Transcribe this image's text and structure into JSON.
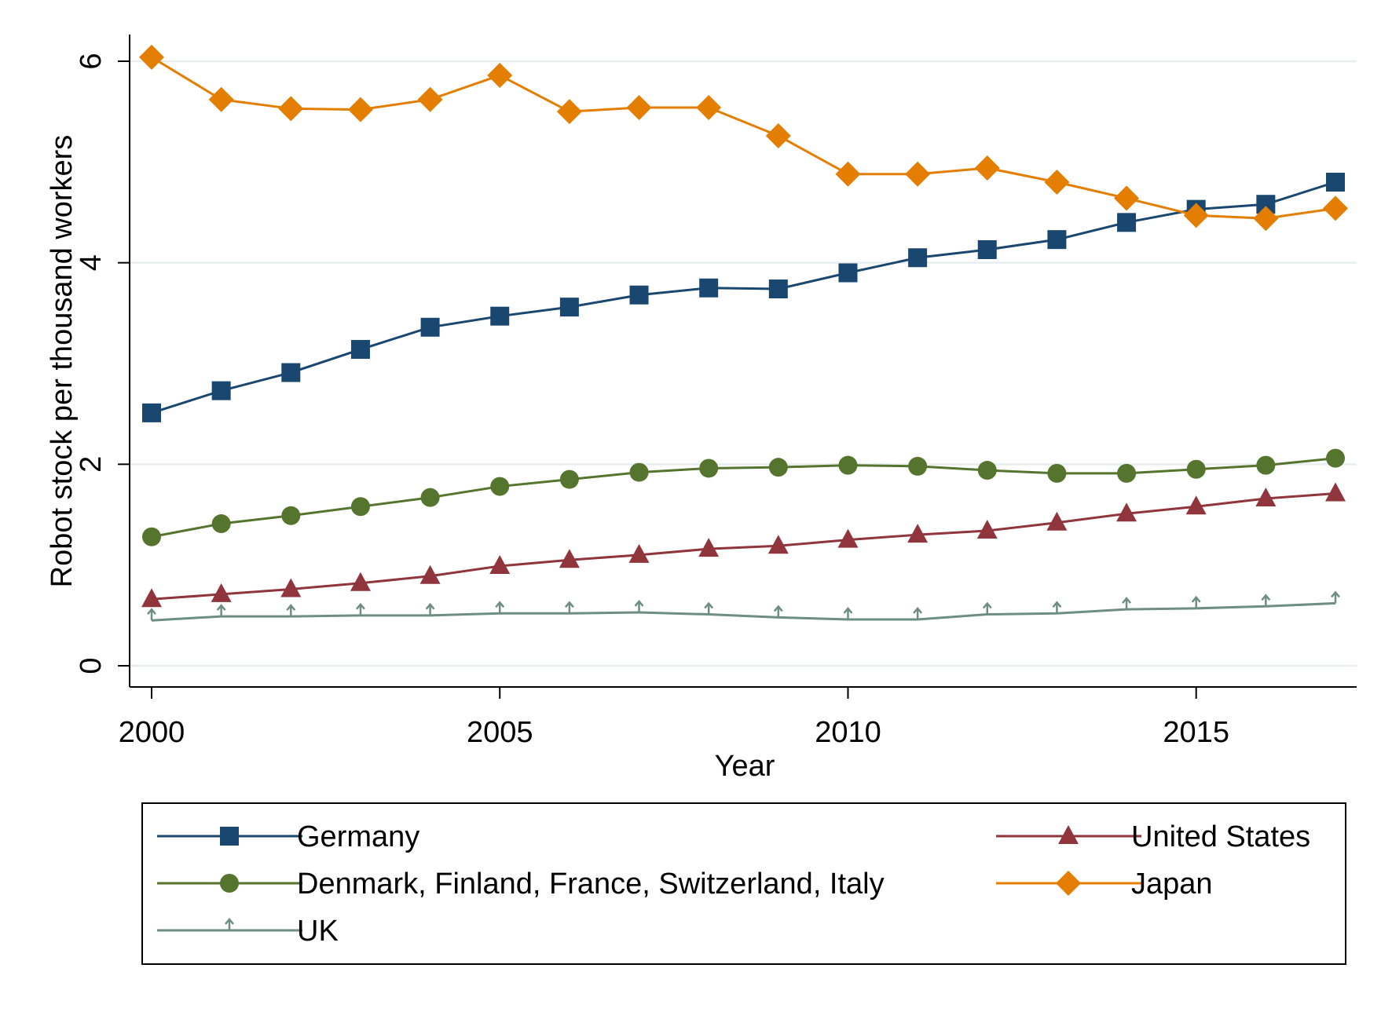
{
  "chart_data": {
    "type": "line",
    "xlabel": "Year",
    "ylabel": "Robot stock per thousand workers",
    "xlim": [
      2000,
      2017
    ],
    "ylim": [
      0,
      6
    ],
    "x_ticks": [
      2000,
      2005,
      2010,
      2015
    ],
    "y_ticks": [
      0,
      2,
      4,
      6
    ],
    "x_tick_labels": [
      "2000",
      "2005",
      "2010",
      "2015"
    ],
    "y_tick_labels": [
      "0",
      "2",
      "4",
      "6"
    ],
    "grid": true,
    "legend_position": "bottom",
    "x": [
      2000,
      2001,
      2002,
      2003,
      2004,
      2005,
      2006,
      2007,
      2008,
      2009,
      2010,
      2011,
      2012,
      2013,
      2014,
      2015,
      2016,
      2017
    ],
    "series": [
      {
        "name": "Germany",
        "color": "#1a476f",
        "marker": "square",
        "values": [
          2.51,
          2.73,
          2.91,
          3.14,
          3.36,
          3.47,
          3.56,
          3.68,
          3.75,
          3.74,
          3.9,
          4.05,
          4.13,
          4.23,
          4.4,
          4.53,
          4.58,
          4.8
        ]
      },
      {
        "name": "United States",
        "color": "#90353b",
        "marker": "triangle",
        "values": [
          0.66,
          0.71,
          0.76,
          0.82,
          0.89,
          0.99,
          1.05,
          1.1,
          1.16,
          1.19,
          1.25,
          1.3,
          1.34,
          1.42,
          1.51,
          1.58,
          1.66,
          1.71
        ]
      },
      {
        "name": "Denmark, Finland, France, Switzerland, Italy",
        "color": "#55752f",
        "marker": "circle",
        "values": [
          1.28,
          1.41,
          1.49,
          1.58,
          1.67,
          1.78,
          1.85,
          1.92,
          1.96,
          1.97,
          1.99,
          1.98,
          1.94,
          1.91,
          1.91,
          1.95,
          1.99,
          2.06
        ]
      },
      {
        "name": "Japan",
        "color": "#e37e00",
        "marker": "diamond",
        "values": [
          6.04,
          5.62,
          5.53,
          5.52,
          5.62,
          5.86,
          5.5,
          5.54,
          5.54,
          5.26,
          4.88,
          4.88,
          4.94,
          4.8,
          4.64,
          4.47,
          4.44,
          4.54
        ]
      },
      {
        "name": "UK",
        "color": "#6e8e84",
        "marker": "spike",
        "values": [
          0.45,
          0.49,
          0.49,
          0.5,
          0.5,
          0.52,
          0.52,
          0.53,
          0.51,
          0.48,
          0.46,
          0.46,
          0.51,
          0.52,
          0.56,
          0.57,
          0.59,
          0.62
        ]
      }
    ]
  }
}
